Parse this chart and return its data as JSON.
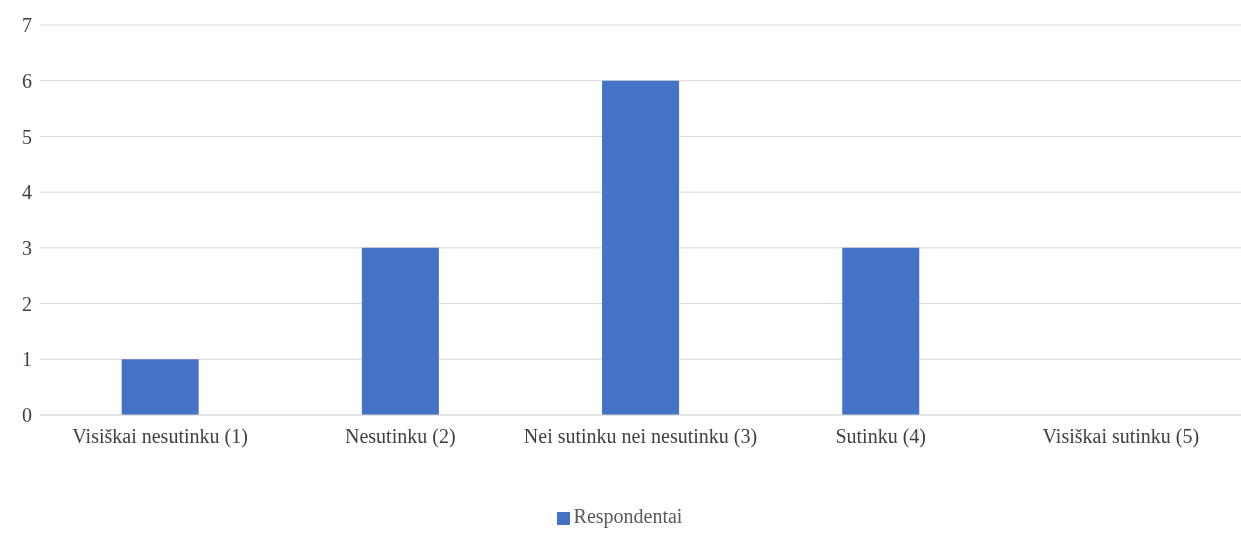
{
  "chart_data": {
    "type": "bar",
    "categories": [
      "Visiškai nesutinku (1)",
      "Nesutinku (2)",
      "Nei sutinku nei nesutinku (3)",
      "Sutinku (4)",
      "Visiškai sutinku (5)"
    ],
    "series": [
      {
        "name": "Respondentai",
        "color": "#4472c4",
        "values": [
          1,
          3,
          6,
          3,
          0
        ]
      }
    ],
    "ylim": [
      0,
      7
    ],
    "yticks": [
      0,
      1,
      2,
      3,
      4,
      5,
      6,
      7
    ],
    "grid": "y",
    "legend": "bottom"
  }
}
